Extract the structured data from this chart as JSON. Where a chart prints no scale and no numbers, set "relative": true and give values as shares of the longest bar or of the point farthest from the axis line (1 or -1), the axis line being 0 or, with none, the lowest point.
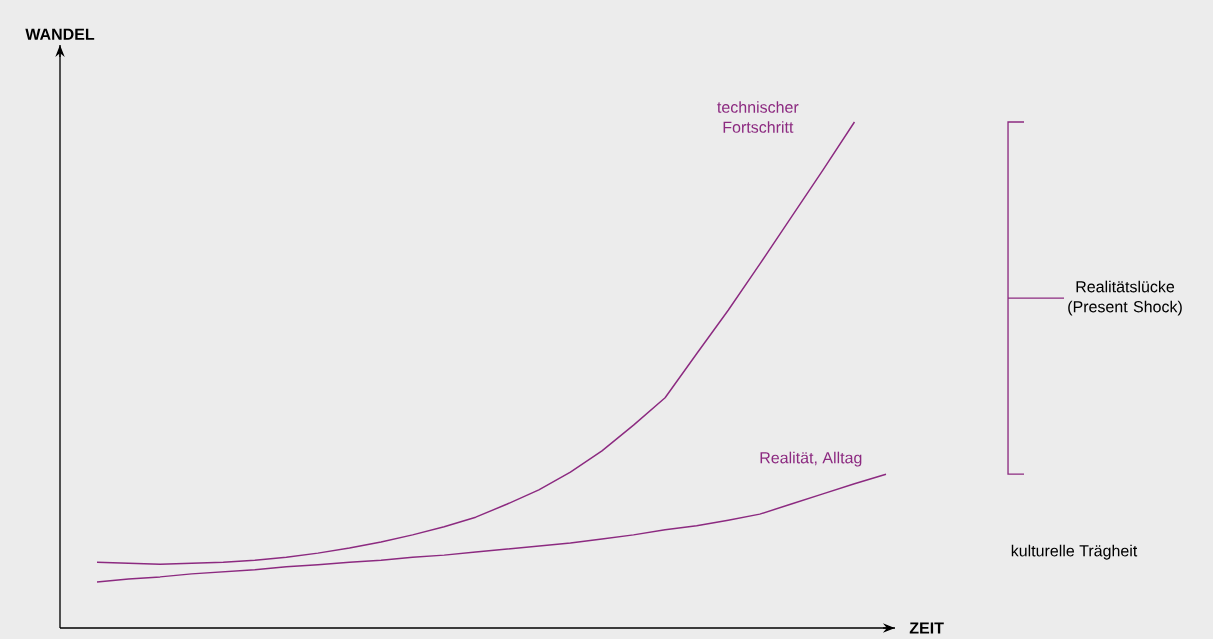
{
  "chart_data": {
    "type": "line",
    "relative": true,
    "xlabel": "ZEIT",
    "categories": [
      null,
      null,
      null,
      null,
      null,
      null,
      null,
      null,
      null,
      null,
      null,
      null,
      null,
      null,
      null,
      null,
      null,
      null,
      null,
      null,
      null,
      null,
      null,
      null,
      null,
      null
    ],
    "series": [
      {
        "name": "technischer Fortschritt",
        "color": "#8c2a80",
        "values": [
          0.13,
          0.128,
          0.126,
          0.128,
          0.13,
          0.134,
          0.14,
          0.148,
          0.158,
          0.17,
          0.184,
          0.2,
          0.219,
          0.245,
          0.273,
          0.308,
          0.35,
          0.401,
          0.455,
          0.542,
          0.628,
          0.719,
          0.812,
          0.905,
          1,
          null
        ]
      },
      {
        "name": "Realität, Alltag",
        "color": "#8c2a80",
        "values": [
          0.091,
          0.097,
          0.101,
          0.107,
          0.111,
          0.115,
          0.121,
          0.125,
          0.13,
          0.134,
          0.14,
          0.144,
          0.15,
          0.156,
          0.162,
          0.168,
          0.176,
          0.184,
          0.194,
          0.202,
          0.213,
          0.225,
          0.245,
          0.265,
          0.285,
          0.304
        ]
      }
    ],
    "annotations": [
      "Realitätslücke (Present Shock)",
      "kulturelle Trägheit",
      "WANDEL"
    ]
  }
}
